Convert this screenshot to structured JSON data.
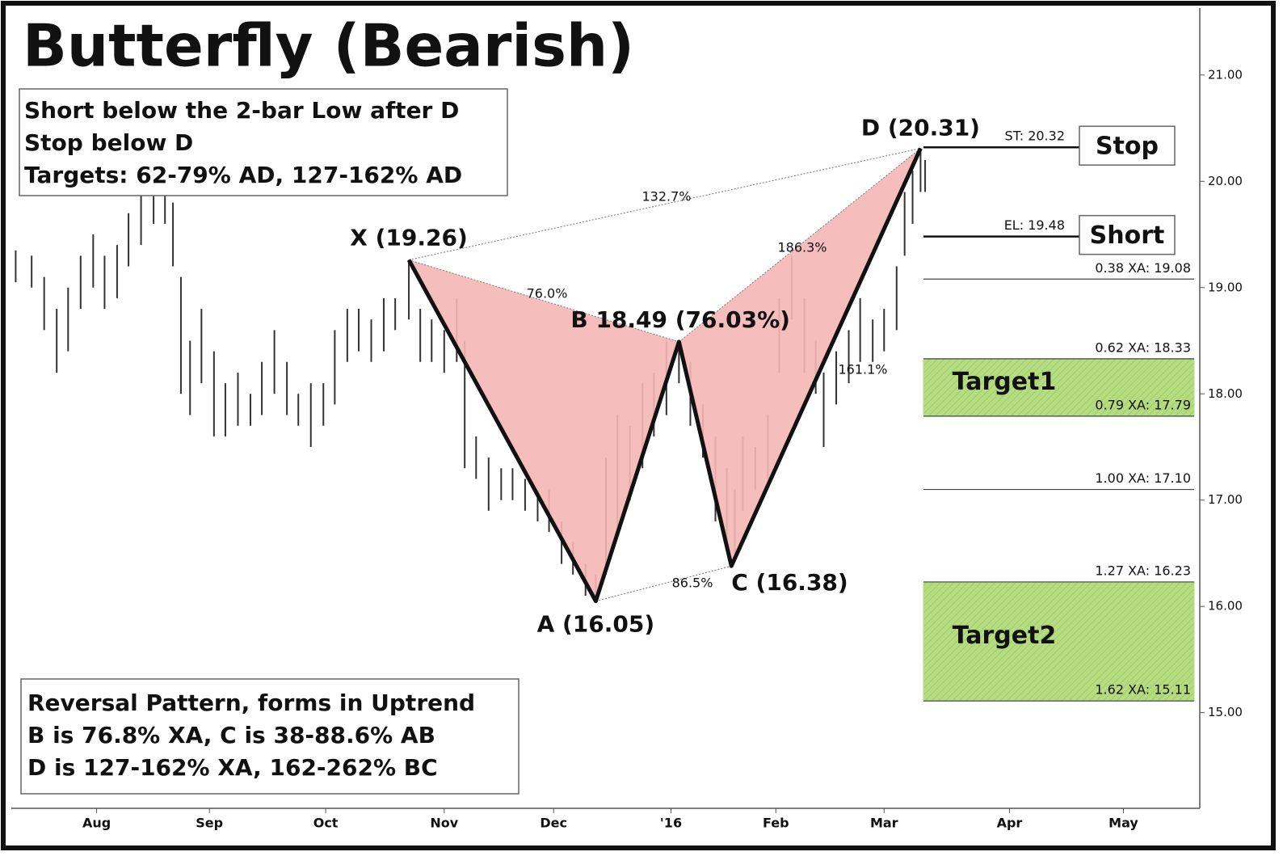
{
  "chart_data": {
    "type": "harmonic-pattern",
    "title": "Butterfly (Bearish)",
    "notes_top": [
      "Short below the 2-bar Low after D",
      "Stop below D",
      "Targets: 62-79% AD, 127-162% AD"
    ],
    "notes_bottom": [
      "Reversal Pattern, forms in Uptrend",
      "B is 76.8% XA, C is 38-88.6% AB",
      "D is 127-162% XA, 162-262% BC"
    ],
    "xlim": [
      0.28,
      10.68
    ],
    "xticks": [
      {
        "value": 1.0,
        "label": "Aug"
      },
      {
        "value": 1.99,
        "label": "Sep"
      },
      {
        "value": 3.01,
        "label": "Oct"
      },
      {
        "value": 4.05,
        "label": "Nov"
      },
      {
        "value": 5.01,
        "label": "Dec"
      },
      {
        "value": 6.04,
        "label": "'16"
      },
      {
        "value": 6.96,
        "label": "Feb"
      },
      {
        "value": 7.91,
        "label": "Mar"
      },
      {
        "value": 9.01,
        "label": "Apr"
      },
      {
        "value": 10.01,
        "label": "May"
      }
    ],
    "ylim": [
      14.1,
      21.63
    ],
    "yticks": [
      {
        "value": 15,
        "label": "15.00"
      },
      {
        "value": 16,
        "label": "16.00"
      },
      {
        "value": 17,
        "label": "17.00"
      },
      {
        "value": 18,
        "label": "18.00"
      },
      {
        "value": 19,
        "label": "19.00"
      },
      {
        "value": 20,
        "label": "20.00"
      },
      {
        "value": 21,
        "label": "21.00"
      }
    ],
    "bar_color": "#333333",
    "bars": {
      "x": [
        0.29,
        0.43,
        0.54,
        0.65,
        0.75,
        0.86,
        0.97,
        1.07,
        1.18,
        1.28,
        1.39,
        1.5,
        1.6,
        1.67,
        1.74,
        1.82,
        1.92,
        2.03,
        2.13,
        2.24,
        2.35,
        2.45,
        2.56,
        2.67,
        2.77,
        2.88,
        2.99,
        3.09,
        3.2,
        3.3,
        3.41,
        3.52,
        3.62,
        3.74,
        3.84,
        3.94,
        4.05,
        4.16,
        4.23,
        4.33,
        4.44,
        4.55,
        4.65,
        4.76,
        4.87,
        4.97,
        5.08,
        5.18,
        5.29,
        5.38,
        5.47,
        5.57,
        5.68,
        5.79,
        5.89,
        6.0,
        6.11,
        6.21,
        6.32,
        6.43,
        6.53,
        6.6,
        6.67,
        6.78,
        6.89,
        6.99,
        7.1,
        7.21,
        7.31,
        7.38,
        7.49,
        7.6,
        7.7,
        7.81,
        7.91,
        8.02,
        8.09,
        8.16,
        8.23,
        8.27
      ],
      "high": [
        19.35,
        19.3,
        19.1,
        18.8,
        19.0,
        19.3,
        19.5,
        19.3,
        19.4,
        19.7,
        19.9,
        20.0,
        20.0,
        19.8,
        19.1,
        18.5,
        18.8,
        18.4,
        18.1,
        18.2,
        18.0,
        18.3,
        18.6,
        18.3,
        18.0,
        18.1,
        18.1,
        18.6,
        18.8,
        18.8,
        18.7,
        18.9,
        18.9,
        19.26,
        18.8,
        18.7,
        18.6,
        18.9,
        18.5,
        17.6,
        17.4,
        17.3,
        17.3,
        17.2,
        17.1,
        17.1,
        16.8,
        16.6,
        16.4,
        16.3,
        17.4,
        17.8,
        17.7,
        18.1,
        18.2,
        18.5,
        18.49,
        18.3,
        17.9,
        17.6,
        17.3,
        17.1,
        17.6,
        17.5,
        17.8,
        18.9,
        19.3,
        18.9,
        18.5,
        18.2,
        18.4,
        18.6,
        18.9,
        18.7,
        18.8,
        19.2,
        19.9,
        20.1,
        20.31,
        20.2
      ],
      "low": [
        19.05,
        19.0,
        18.6,
        18.2,
        18.4,
        18.8,
        19.0,
        18.8,
        18.9,
        19.2,
        19.4,
        19.6,
        19.6,
        19.2,
        18.0,
        17.8,
        18.1,
        17.6,
        17.6,
        17.7,
        17.7,
        17.8,
        18.0,
        17.8,
        17.7,
        17.5,
        17.7,
        17.9,
        18.3,
        18.4,
        18.3,
        18.4,
        18.6,
        18.7,
        18.3,
        18.3,
        18.2,
        18.3,
        17.3,
        17.2,
        16.9,
        17.0,
        17.0,
        16.9,
        16.8,
        16.7,
        16.4,
        16.3,
        16.1,
        16.05,
        16.3,
        16.7,
        17.0,
        17.3,
        17.6,
        17.8,
        18.1,
        17.7,
        17.4,
        16.8,
        16.6,
        16.5,
        16.9,
        17.1,
        17.2,
        18.2,
        18.7,
        18.2,
        18.0,
        17.5,
        17.9,
        18.1,
        18.3,
        18.3,
        18.4,
        18.6,
        19.3,
        19.6,
        19.9,
        19.9
      ]
    },
    "pattern_fill": "#f4b6b4",
    "points": [
      {
        "name": "X",
        "x": 3.74,
        "y": 19.26,
        "label": "X (19.26)"
      },
      {
        "name": "A",
        "x": 5.38,
        "y": 16.05,
        "label": "A (16.05)"
      },
      {
        "name": "B",
        "x": 6.11,
        "y": 18.49,
        "label": "B 18.49 (76.03%)"
      },
      {
        "name": "C",
        "x": 6.57,
        "y": 16.38,
        "label": "C (16.38)"
      },
      {
        "name": "D",
        "x": 8.23,
        "y": 20.31,
        "label": "D (20.31)"
      }
    ],
    "ratios": [
      "132.7%",
      "76.0%",
      "86.5%",
      "186.3%",
      "161.1%"
    ],
    "levels": [
      {
        "value": 20.32,
        "label": "ST: 20.32",
        "tag": "Stop"
      },
      {
        "value": 19.48,
        "label": "EL: 19.48",
        "tag": "Short"
      },
      {
        "value": 19.08,
        "label": "0.38 XA: 19.08"
      },
      {
        "value": 18.33,
        "label": "0.62 XA: 18.33"
      },
      {
        "value": 17.79,
        "label": "0.79 XA: 17.79"
      },
      {
        "value": 17.1,
        "label": "1.00 XA: 17.10"
      },
      {
        "value": 16.23,
        "label": "1.27 XA: 16.23"
      },
      {
        "value": 15.11,
        "label": "1.62 XA: 15.11"
      }
    ],
    "zones": [
      {
        "label": "Target1",
        "top": 18.33,
        "bottom": 17.79,
        "color": "#b6dc82"
      },
      {
        "label": "Target2",
        "top": 16.23,
        "bottom": 15.11,
        "color": "#b6dc82"
      }
    ]
  }
}
